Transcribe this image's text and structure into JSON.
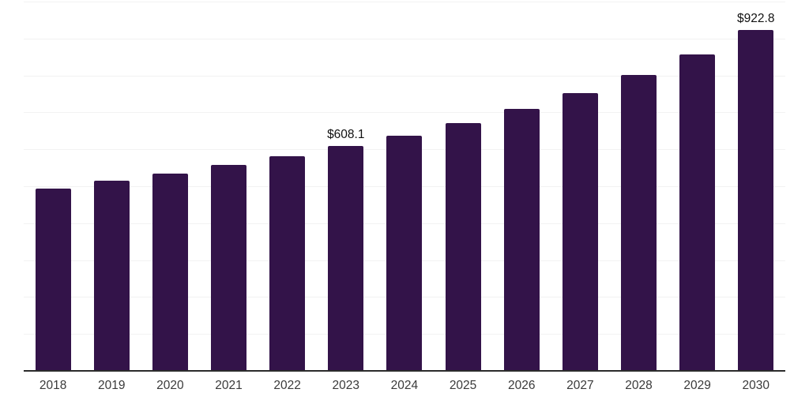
{
  "chart_data": {
    "type": "bar",
    "title": "",
    "categories": [
      "2018",
      "2019",
      "2020",
      "2021",
      "2022",
      "2023",
      "2024",
      "2025",
      "2026",
      "2027",
      "2028",
      "2029",
      "2030"
    ],
    "values": [
      493,
      515,
      534,
      557,
      582,
      608.1,
      637,
      671,
      710,
      753,
      801,
      856,
      922.8
    ],
    "data_labels": [
      "",
      "",
      "",
      "",
      "",
      "$608.1",
      "",
      "",
      "",
      "",
      "",
      "",
      "$922.8"
    ],
    "value_prefix": "$",
    "xlabel": "",
    "ylabel": "",
    "ylim": [
      0,
      1000
    ],
    "gridline_interval": 100,
    "grid": true,
    "legend_position": "none",
    "colors": {
      "bar": "#331349",
      "grid": "#f2f2f2",
      "axis": "#2b2b2b",
      "data_label": "#111111",
      "tick_label": "#3a3a3a",
      "background": "#ffffff"
    }
  }
}
